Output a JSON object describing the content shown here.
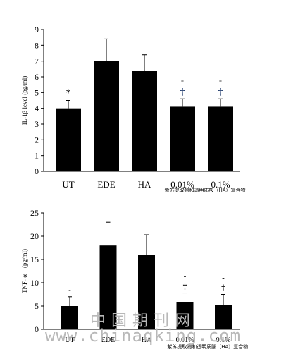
{
  "chart_data": [
    {
      "type": "bar",
      "title": "",
      "xlabel": "",
      "ylabel": "IL-1β level (pg/ml)",
      "categories": [
        "UT",
        "EDE",
        "HA",
        "0.01%",
        "0.1%"
      ],
      "group_label": "紫苏提取物和透明质酸（HA）复合物",
      "ylim": [
        0,
        9
      ],
      "yticks": [
        "0",
        "1",
        "2",
        "3",
        "4",
        "5",
        "6",
        "7",
        "8",
        "9"
      ],
      "series": [
        {
          "values": [
            4.0,
            7.0,
            6.4,
            4.1,
            4.1
          ],
          "errors": [
            0.5,
            1.4,
            1.0,
            0.5,
            0.5
          ],
          "color": "#000000"
        }
      ],
      "annotations": [
        {
          "category": "UT",
          "symbols": [
            "*"
          ]
        },
        {
          "category": "0.01%",
          "symbols": [
            "-",
            "†"
          ]
        },
        {
          "category": "0.1%",
          "symbols": [
            "-",
            "†"
          ]
        }
      ],
      "grid": false,
      "legend": "none"
    },
    {
      "type": "bar",
      "title": "",
      "xlabel": "",
      "ylabel": "TNF- α　(pg/ml)",
      "categories": [
        "UT",
        "EDE",
        "HA",
        "0.01%",
        "0.1%"
      ],
      "group_label": "紫苏提取物和透明质酸（HA）复合物",
      "ylim": [
        0,
        25
      ],
      "yticks": [
        "0",
        "5",
        "10",
        "15",
        "20",
        "25"
      ],
      "series": [
        {
          "values": [
            5.0,
            18.0,
            16.0,
            5.8,
            5.3
          ],
          "errors": [
            2.0,
            5.0,
            4.3,
            2.0,
            2.2
          ],
          "color": "#000000"
        }
      ],
      "annotations": [
        {
          "category": "UT",
          "symbols": [
            "-"
          ]
        },
        {
          "category": "0.01%",
          "symbols": [
            "-",
            "†"
          ]
        },
        {
          "category": "0.1%",
          "symbols": [
            "-",
            "†"
          ]
        }
      ],
      "grid": false,
      "legend": "none"
    }
  ],
  "watermark": {
    "chinese": "中国期刊网",
    "url": "www.chinaqking.com"
  }
}
